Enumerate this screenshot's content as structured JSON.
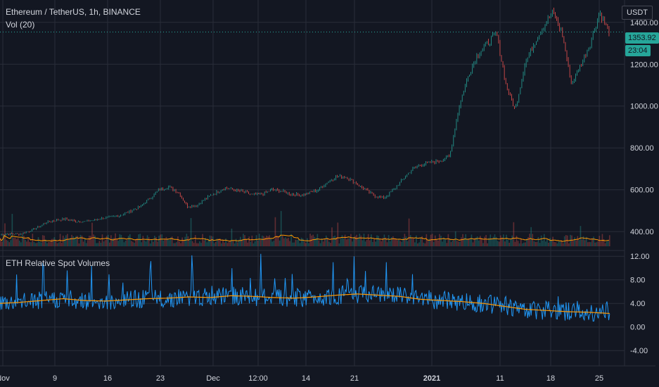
{
  "header": {
    "symbol": "Ethereum / TetherUS, 1h, BINANCE",
    "volume_label": "Vol (20)",
    "currency": "USDT"
  },
  "price_tags": {
    "last_price": "1353.92",
    "countdown": "23:04",
    "color": "#26a69a"
  },
  "lower_panel": {
    "title": "ETH Relative Spot Volumes"
  },
  "colors": {
    "background": "#131722",
    "grid": "#2a2e39",
    "up": "#26a69a",
    "down": "#ef5350",
    "volume_ma": "#ff9800",
    "relvol": "#2196f3",
    "relvol_ma": "#ff9800",
    "axis_text": "#d1d4dc"
  },
  "chart_data": [
    {
      "type": "line",
      "title": "",
      "yticks": [
        "400.00",
        "600.00",
        "800.00",
        "1000.00",
        "1200.00",
        "1400.00"
      ],
      "ylim": [
        330,
        1480
      ],
      "x_tick_labels": [
        "Nov",
        "9",
        "16",
        "23",
        "Dec",
        "12:00",
        "14",
        "21",
        "2021",
        "11",
        "18",
        "25"
      ],
      "series": [
        {
          "values": [
            385,
            390,
            388,
            400,
            420,
            445,
            455,
            460,
            450,
            448,
            455,
            465,
            470,
            480,
            500,
            520,
            560,
            600,
            615,
            590,
            520,
            525,
            560,
            585,
            610,
            600,
            590,
            575,
            580,
            600,
            595,
            580,
            575,
            585,
            600,
            640,
            665,
            660,
            630,
            600,
            570,
            560,
            600,
            650,
            700,
            720,
            730,
            740,
            760,
            1000,
            1150,
            1250,
            1300,
            1350,
            1100,
            980,
            1200,
            1300,
            1380,
            1450,
            1350,
            1100,
            1200,
            1300,
            1450,
            1353.92
          ]
        }
      ]
    },
    {
      "type": "line",
      "title": "ETH Relative Spot Volumes",
      "yticks": [
        "12.00",
        "8.00",
        "4.00",
        "0.00",
        "-4.00"
      ],
      "ylim": [
        -6,
        12.5
      ],
      "x_tick_labels": [
        "Nov",
        "9",
        "16",
        "23",
        "Dec",
        "12:00",
        "14",
        "21",
        "2021",
        "11",
        "18",
        "25"
      ],
      "series": [
        {
          "values": [
            4.0,
            4.2,
            4.5,
            4.8,
            4.5,
            4.4,
            4.6,
            4.8,
            4.9,
            5.1,
            5.0,
            5.3,
            5.2,
            5.0,
            4.9,
            5.1,
            5.4,
            5.6,
            5.4,
            5.2,
            4.7,
            4.5,
            4.3,
            4.0,
            3.5,
            3.0,
            2.8,
            2.6,
            2.5,
            2.3
          ]
        }
      ]
    }
  ]
}
